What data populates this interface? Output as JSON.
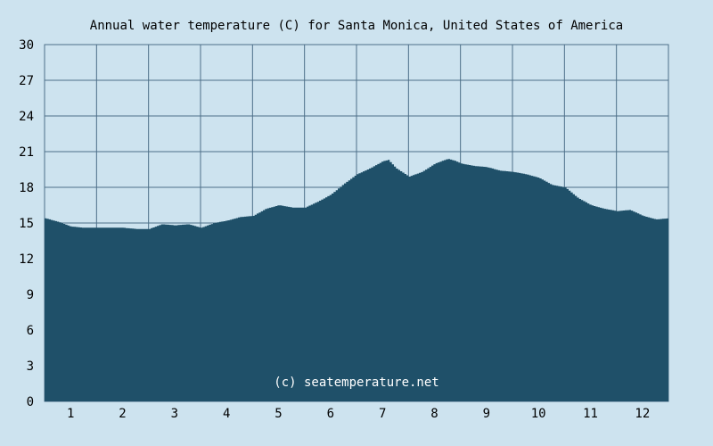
{
  "chart_data": {
    "type": "area",
    "title": "Annual water temperature (C) for Santa Monica, United States of America",
    "watermark": "(c) seatemperature.net",
    "xlabel": "",
    "ylabel": "",
    "x_tick_labels": [
      "1",
      "2",
      "3",
      "4",
      "5",
      "6",
      "7",
      "8",
      "9",
      "10",
      "11",
      "12"
    ],
    "y_ticks": [
      0,
      3,
      6,
      9,
      12,
      15,
      18,
      21,
      24,
      27,
      30
    ],
    "ylim": [
      0,
      30
    ],
    "xlim": [
      0.5,
      12.5
    ],
    "grid": true,
    "colors": {
      "background": "#cde3ef",
      "fill": "#1f5069",
      "grid": "#4d6f88"
    },
    "series": [
      {
        "x": [
          0.5,
          0.75,
          1.0,
          1.25,
          1.5,
          1.75,
          2.0,
          2.25,
          2.5,
          2.75,
          3.0,
          3.25,
          3.5,
          3.75,
          4.0,
          4.25,
          4.5,
          4.75,
          5.0,
          5.25,
          5.5,
          5.75,
          6.0,
          6.25,
          6.5,
          6.75,
          7.0,
          7.1,
          7.25,
          7.5,
          7.75,
          8.0,
          8.25,
          8.4,
          8.5,
          8.75,
          9.0,
          9.25,
          9.5,
          9.75,
          10.0,
          10.25,
          10.5,
          10.75,
          11.0,
          11.25,
          11.5,
          11.75,
          12.0,
          12.25,
          12.5
        ],
        "values": [
          15.4,
          15.1,
          14.7,
          14.6,
          14.6,
          14.6,
          14.6,
          14.5,
          14.5,
          14.9,
          14.8,
          14.9,
          14.6,
          15.0,
          15.2,
          15.5,
          15.6,
          16.2,
          16.5,
          16.3,
          16.3,
          16.8,
          17.4,
          18.3,
          19.1,
          19.6,
          20.2,
          20.3,
          19.6,
          18.9,
          19.3,
          20.0,
          20.4,
          20.2,
          20.0,
          19.8,
          19.7,
          19.4,
          19.3,
          19.1,
          18.8,
          18.2,
          18.0,
          17.1,
          16.5,
          16.2,
          16.0,
          16.1,
          15.6,
          15.3,
          15.4
        ]
      }
    ]
  }
}
